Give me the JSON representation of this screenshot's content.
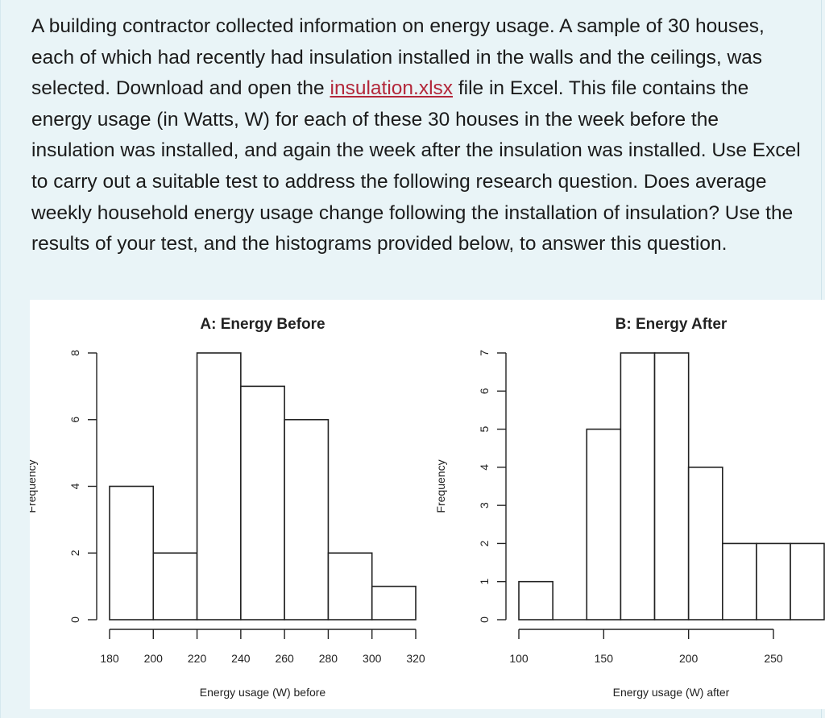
{
  "question": {
    "text_before_link": "A building contractor collected information on energy usage. A sample of 30 houses, each of which had recently had insulation installed in the walls and the ceilings, was selected. Download and open the ",
    "link_text": "insulation.xlsx",
    "text_after_link": " file in Excel. This file contains the energy usage (in Watts, W) for each of these 30 houses in the week before the insulation was installed, and again the week after the insulation was installed. Use Excel to carry out a suitable test to address the following research question. Does average weekly household energy usage change following the installation of insulation? Use the results of your test, and the histograms provided below, to answer this question."
  },
  "colors": {
    "background": "#e9f4f7",
    "link": "#b3273a",
    "bar_fill": "#ffffff",
    "bar_stroke": "#222222"
  },
  "chart_data": [
    {
      "type": "bar",
      "title": "A: Energy Before",
      "xlabel": "Energy usage (W) before",
      "ylabel": "Frequency",
      "bin_edges": [
        180,
        200,
        220,
        240,
        260,
        280,
        300,
        320
      ],
      "values": [
        4,
        2,
        8,
        7,
        6,
        2,
        1
      ],
      "xticks": [
        180,
        200,
        220,
        240,
        260,
        280,
        300,
        320
      ],
      "yticks": [
        0,
        2,
        4,
        6,
        8
      ],
      "xlim": [
        180,
        320
      ],
      "ylim": [
        0,
        8
      ],
      "grid": false
    },
    {
      "type": "bar",
      "title": "B: Energy After",
      "xlabel": "Energy usage (W) after",
      "ylabel": "Frequency",
      "bin_edges": [
        100,
        120,
        140,
        160,
        180,
        200,
        220,
        240,
        260,
        280
      ],
      "values": [
        1,
        0,
        5,
        7,
        7,
        4,
        2,
        2,
        2
      ],
      "xticks": [
        100,
        150,
        200,
        250
      ],
      "yticks": [
        0,
        1,
        2,
        3,
        4,
        5,
        6,
        7
      ],
      "xlim": [
        100,
        250
      ],
      "ylim": [
        0,
        7
      ],
      "grid": false
    }
  ]
}
